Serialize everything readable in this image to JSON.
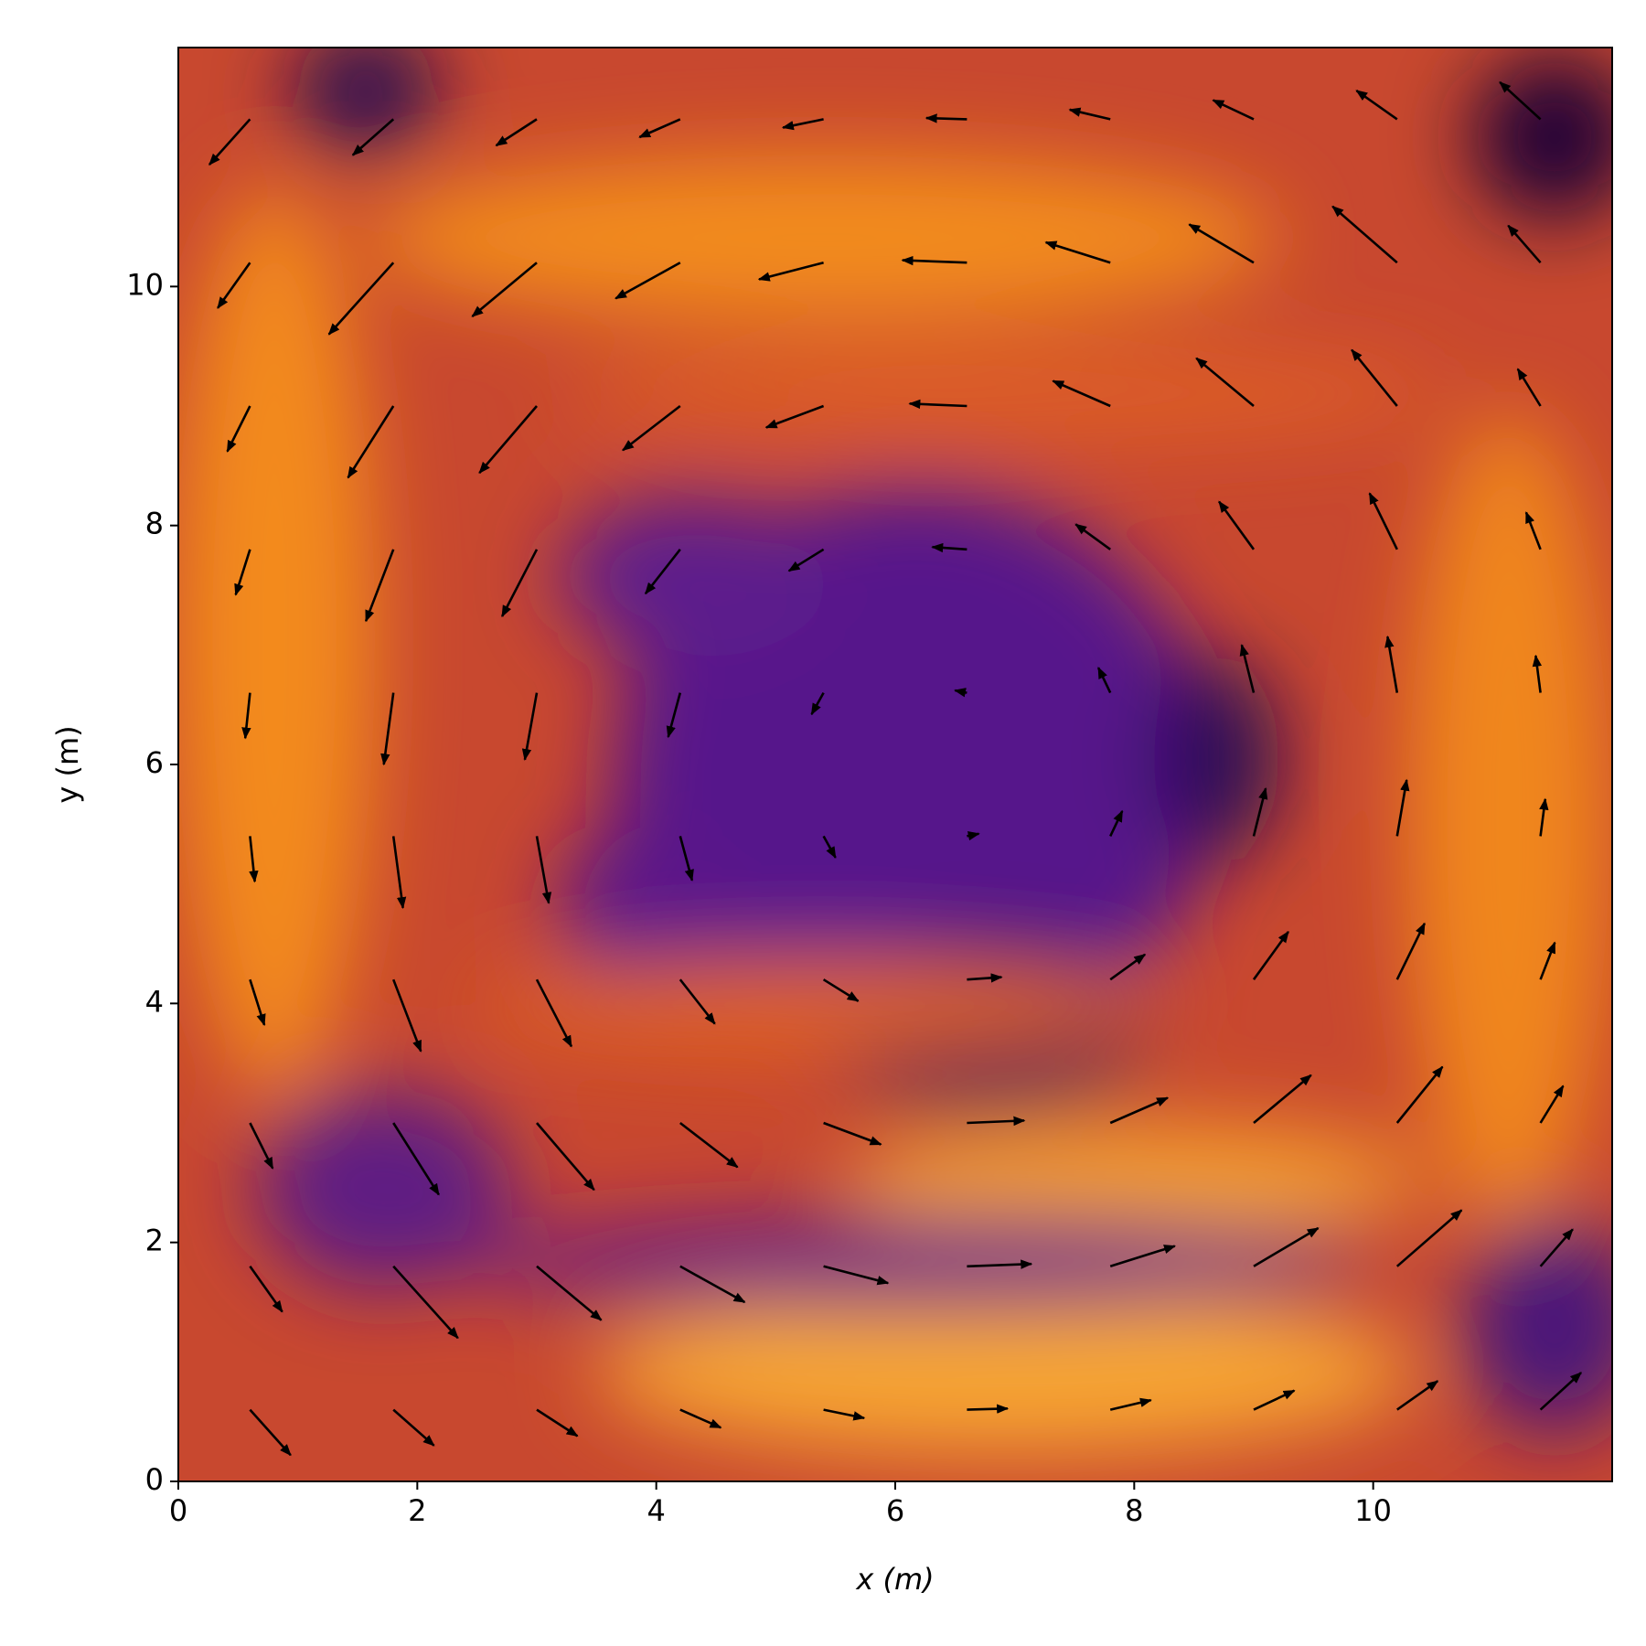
{
  "chart_data": {
    "type": "quiver",
    "xlabel": "x (m)",
    "ylabel": "y (m)",
    "xlim": [
      0,
      12
    ],
    "ylim": [
      0,
      12
    ],
    "xticks": [
      0,
      2,
      4,
      6,
      8,
      10
    ],
    "yticks": [
      0,
      2,
      4,
      6,
      8,
      10
    ],
    "arrow_color": "#000000",
    "grid_x": [
      0.6,
      1.8,
      3.0,
      4.2,
      5.4,
      6.6,
      7.8,
      9.0,
      10.2,
      11.4
    ],
    "grid_y": [
      0.6,
      1.8,
      3.0,
      4.2,
      5.4,
      6.6,
      7.8,
      9.0,
      10.2,
      11.4
    ],
    "u": [
      [
        0.34,
        0.34,
        0.34,
        0.34,
        0.34,
        0.34,
        0.34,
        0.34,
        0.34,
        0.34
      ],
      [
        0.27,
        0.54,
        0.54,
        0.54,
        0.54,
        0.54,
        0.54,
        0.54,
        0.54,
        0.27
      ],
      [
        0.19,
        0.38,
        0.48,
        0.48,
        0.48,
        0.48,
        0.48,
        0.48,
        0.38,
        0.19
      ],
      [
        0.12,
        0.23,
        0.29,
        0.29,
        0.29,
        0.29,
        0.29,
        0.29,
        0.23,
        0.12
      ],
      [
        0.04,
        0.08,
        0.1,
        0.1,
        0.1,
        0.1,
        0.1,
        0.1,
        0.08,
        0.04
      ],
      [
        -0.04,
        -0.08,
        -0.1,
        -0.1,
        -0.1,
        -0.1,
        -0.1,
        -0.1,
        -0.08,
        -0.04
      ],
      [
        -0.12,
        -0.23,
        -0.29,
        -0.29,
        -0.29,
        -0.29,
        -0.29,
        -0.29,
        -0.23,
        -0.12
      ],
      [
        -0.19,
        -0.38,
        -0.48,
        -0.48,
        -0.48,
        -0.48,
        -0.48,
        -0.48,
        -0.38,
        -0.19
      ],
      [
        -0.27,
        -0.54,
        -0.54,
        -0.54,
        -0.54,
        -0.54,
        -0.54,
        -0.54,
        -0.54,
        -0.27
      ],
      [
        -0.34,
        -0.34,
        -0.34,
        -0.34,
        -0.34,
        -0.34,
        -0.34,
        -0.34,
        -0.34,
        -0.34
      ]
    ],
    "v": [
      [
        -0.38,
        -0.3,
        -0.22,
        -0.15,
        -0.07,
        0.01,
        0.08,
        0.16,
        0.24,
        0.31
      ],
      [
        -0.38,
        -0.6,
        -0.45,
        -0.3,
        -0.14,
        0.02,
        0.17,
        0.32,
        0.47,
        0.31
      ],
      [
        -0.38,
        -0.6,
        -0.56,
        -0.37,
        -0.18,
        0.02,
        0.21,
        0.4,
        0.47,
        0.31
      ],
      [
        -0.38,
        -0.6,
        -0.56,
        -0.37,
        -0.18,
        0.02,
        0.21,
        0.4,
        0.47,
        0.31
      ],
      [
        -0.38,
        -0.6,
        -0.56,
        -0.37,
        -0.18,
        0.02,
        0.21,
        0.4,
        0.47,
        0.31
      ],
      [
        -0.38,
        -0.6,
        -0.56,
        -0.37,
        -0.18,
        0.02,
        0.21,
        0.4,
        0.47,
        0.31
      ],
      [
        -0.38,
        -0.6,
        -0.56,
        -0.37,
        -0.18,
        0.02,
        0.21,
        0.4,
        0.47,
        0.31
      ],
      [
        -0.38,
        -0.6,
        -0.56,
        -0.37,
        -0.18,
        0.02,
        0.21,
        0.4,
        0.47,
        0.31
      ],
      [
        -0.38,
        -0.6,
        -0.45,
        -0.3,
        -0.14,
        0.02,
        0.17,
        0.32,
        0.47,
        0.31
      ],
      [
        -0.38,
        -0.3,
        -0.22,
        -0.15,
        -0.07,
        0.01,
        0.08,
        0.16,
        0.24,
        0.31
      ]
    ]
  }
}
